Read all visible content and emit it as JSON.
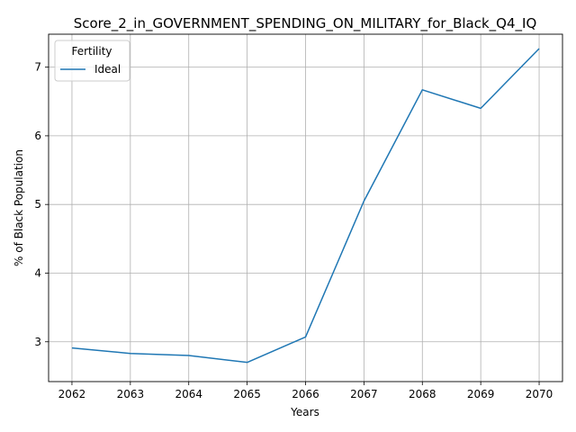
{
  "chart_data": {
    "type": "line",
    "title": "Score_2_in_GOVERNMENT_SPENDING_ON_MILITARY_for_Black_Q4_IQ",
    "xlabel": "Years",
    "ylabel": "% of Black Population",
    "x": [
      2062,
      2063,
      2064,
      2065,
      2066,
      2067,
      2068,
      2069,
      2070
    ],
    "xlim": [
      2061.6,
      2070.4
    ],
    "ylim": [
      2.42,
      7.48
    ],
    "yticks": [
      3,
      4,
      5,
      6,
      7
    ],
    "grid": true,
    "legend": {
      "title": "Fertility",
      "placement": "top-left"
    },
    "series": [
      {
        "name": "Ideal",
        "color": "#1f77b4",
        "values": [
          2.91,
          2.83,
          2.8,
          2.7,
          3.07,
          5.05,
          6.67,
          6.4,
          7.27
        ]
      }
    ]
  }
}
